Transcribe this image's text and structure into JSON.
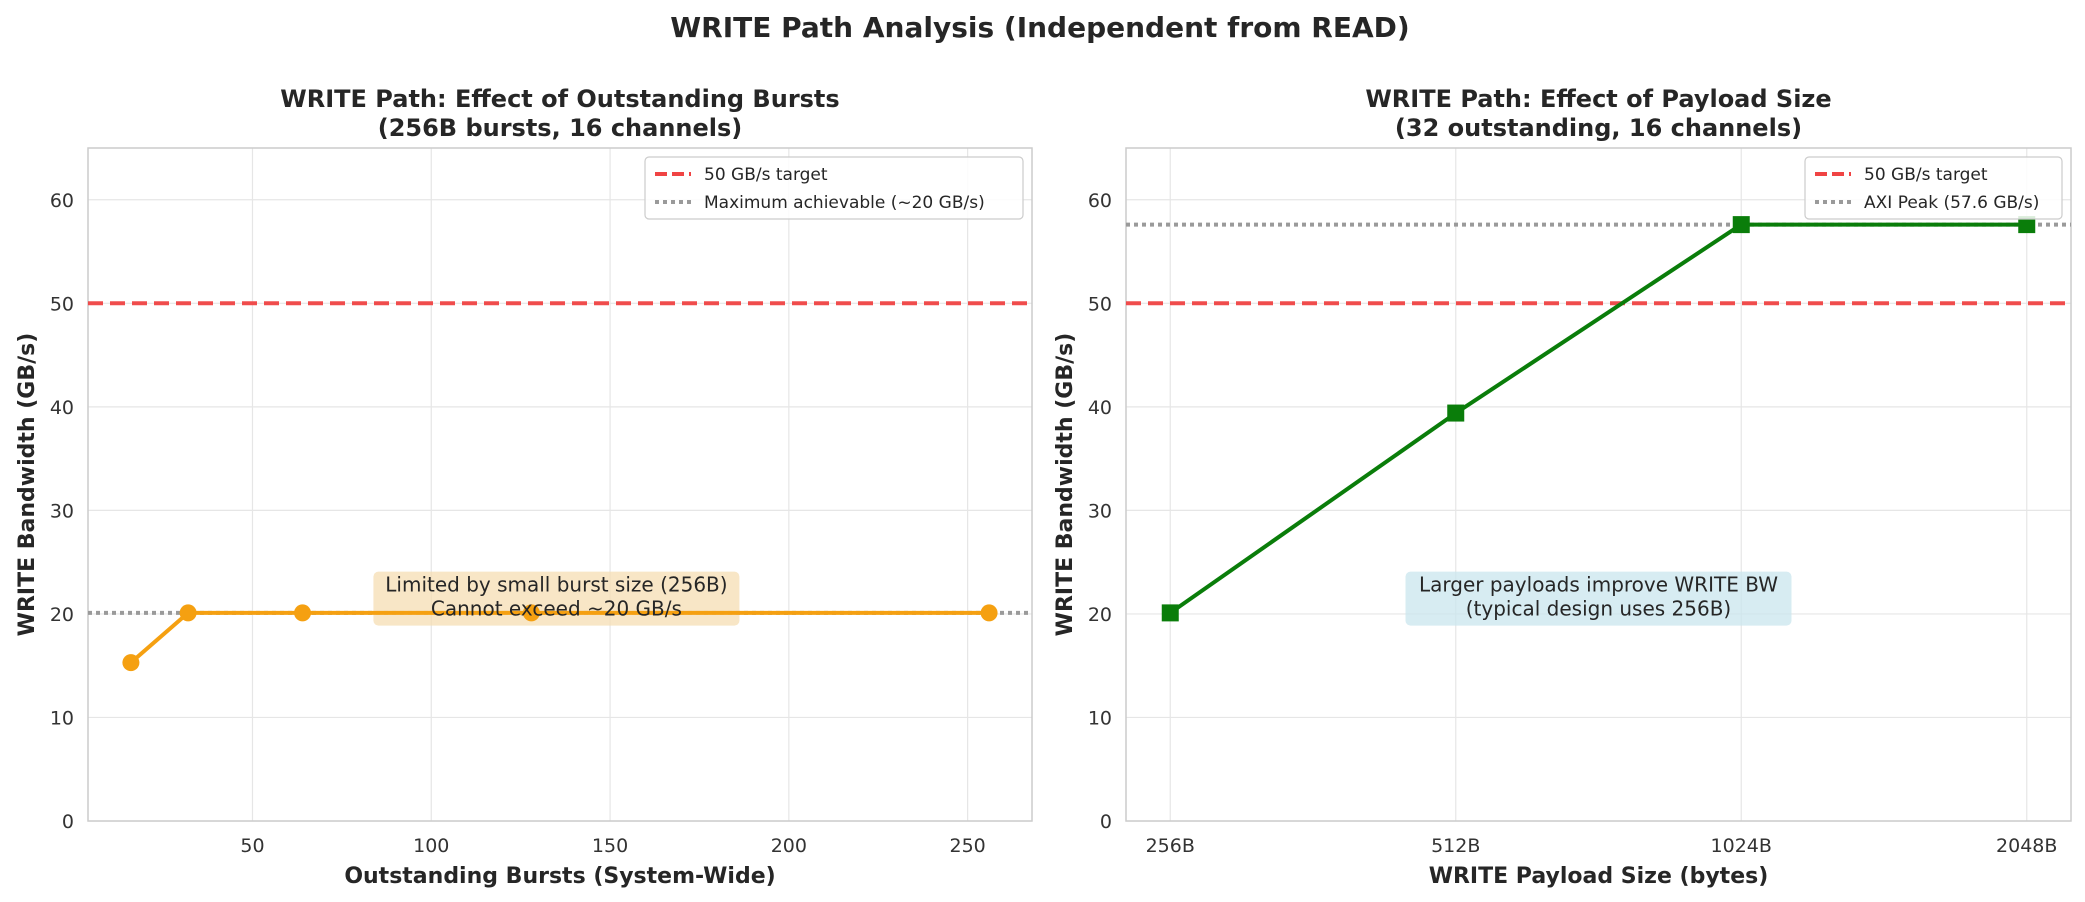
{
  "figure": {
    "suptitle": "WRITE Path Analysis (Independent from READ)"
  },
  "chart_data": [
    {
      "type": "line",
      "title": [
        "WRITE Path: Effect of Outstanding Bursts",
        "(256B bursts, 16 channels)"
      ],
      "xlabel": "Outstanding Bursts (System-Wide)",
      "ylabel": "WRITE Bandwidth (GB/s)",
      "xlim": [
        4,
        268
      ],
      "ylim": [
        0,
        65
      ],
      "x_scale": "linear",
      "xticks": [
        50,
        100,
        150,
        200,
        250
      ],
      "yticks": [
        0,
        10,
        20,
        30,
        40,
        50,
        60
      ],
      "grid": true,
      "legend_position": "top-right",
      "series": [
        {
          "name": "",
          "marker": "circle",
          "color": "#f5a011",
          "x": [
            16,
            32,
            64,
            128,
            256
          ],
          "y": [
            15.3,
            20.1,
            20.1,
            20.1,
            20.1
          ]
        }
      ],
      "reference_lines": [
        {
          "label": "50 GB/s target",
          "y": 50,
          "style": "dashed",
          "color": "#f04444"
        },
        {
          "label": "Maximum achievable (~20 GB/s)",
          "y": 20.1,
          "style": "dotted",
          "color": "#9a9a9a"
        }
      ],
      "annotation": {
        "lines": [
          "Limited by small burst size (256B)",
          "Cannot exceed ~20 GB/s"
        ],
        "x": 135,
        "y": 20.9,
        "bg": "#f5deb3"
      }
    },
    {
      "type": "line",
      "title": [
        "WRITE Path: Effect of Payload Size",
        "(32 outstanding, 16 channels)"
      ],
      "xlabel": "WRITE Payload Size (bytes)",
      "ylabel": "WRITE Bandwidth (GB/s)",
      "xlim": [
        -0.155,
        3.155
      ],
      "ylim": [
        0,
        65
      ],
      "x_scale": "categorical",
      "categories": [
        "256B",
        "512B",
        "1024B",
        "2048B"
      ],
      "yticks": [
        0,
        10,
        20,
        30,
        40,
        50,
        60
      ],
      "grid": true,
      "legend_position": "top-right",
      "series": [
        {
          "name": "",
          "marker": "square",
          "color": "#0a7d0a",
          "values": [
            20.1,
            39.4,
            57.6,
            57.6
          ]
        }
      ],
      "reference_lines": [
        {
          "label": "50 GB/s target",
          "y": 50,
          "style": "dashed",
          "color": "#f04444"
        },
        {
          "label": "AXI Peak (57.6 GB/s)",
          "y": 57.6,
          "style": "dotted",
          "color": "#9a9a9a"
        }
      ],
      "annotation": {
        "lines": [
          "Larger payloads improve WRITE BW",
          "(typical design uses 256B)"
        ],
        "x": 1.5,
        "y": 20.9,
        "bg": "#c9e6ee"
      }
    }
  ]
}
